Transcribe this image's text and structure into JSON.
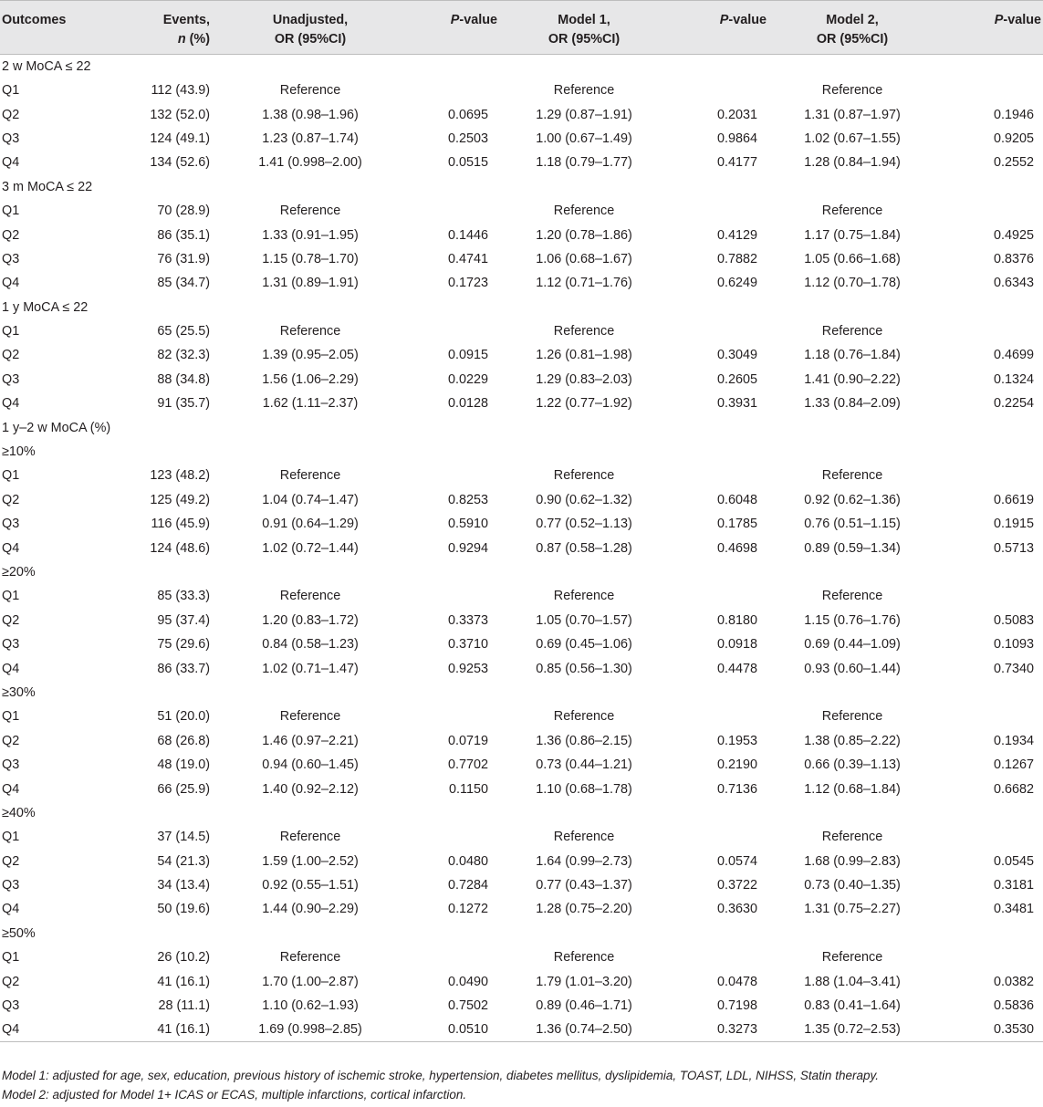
{
  "header": {
    "outcomes": "Outcomes",
    "events_line1": "Events,",
    "events_line2_italic": "n",
    "events_line2_rest": " (%)",
    "unadjusted_line1": "Unadjusted,",
    "unadjusted_line2": "OR (95%CI)",
    "pvalue_italic": "P",
    "pvalue_rest": "-value",
    "model1_line1": "Model 1,",
    "model1_line2": "OR (95%CI)",
    "model2_line1": "Model 2,",
    "model2_line2": "OR (95%CI)"
  },
  "rows": [
    {
      "type": "section",
      "label": "2 w MoCA ≤ 22"
    },
    {
      "type": "data",
      "label": "Q1",
      "events": "112 (43.9)",
      "unadj": "Reference",
      "p1": "",
      "m1": "Reference",
      "p2": "",
      "m2": "Reference",
      "p3": ""
    },
    {
      "type": "data",
      "label": "Q2",
      "events": "132 (52.0)",
      "unadj": "1.38 (0.98–1.96)",
      "p1": "0.0695",
      "m1": "1.29 (0.87–1.91)",
      "p2": "0.2031",
      "m2": "1.31 (0.87–1.97)",
      "p3": "0.1946"
    },
    {
      "type": "data",
      "label": "Q3",
      "events": "124 (49.1)",
      "unadj": "1.23 (0.87–1.74)",
      "p1": "0.2503",
      "m1": "1.00 (0.67–1.49)",
      "p2": "0.9864",
      "m2": "1.02 (0.67–1.55)",
      "p3": "0.9205"
    },
    {
      "type": "data",
      "label": "Q4",
      "events": "134 (52.6)",
      "unadj": "1.41 (0.998–2.00)",
      "p1": "0.0515",
      "m1": "1.18 (0.79–1.77)",
      "p2": "0.4177",
      "m2": "1.28 (0.84–1.94)",
      "p3": "0.2552"
    },
    {
      "type": "section",
      "label": "3 m MoCA ≤ 22"
    },
    {
      "type": "data",
      "label": "Q1",
      "events": "70 (28.9)",
      "unadj": "Reference",
      "p1": "",
      "m1": "Reference",
      "p2": "",
      "m2": "Reference",
      "p3": ""
    },
    {
      "type": "data",
      "label": "Q2",
      "events": "86 (35.1)",
      "unadj": "1.33 (0.91–1.95)",
      "p1": "0.1446",
      "m1": "1.20 (0.78–1.86)",
      "p2": "0.4129",
      "m2": "1.17 (0.75–1.84)",
      "p3": "0.4925"
    },
    {
      "type": "data",
      "label": "Q3",
      "events": "76 (31.9)",
      "unadj": "1.15 (0.78–1.70)",
      "p1": "0.4741",
      "m1": "1.06 (0.68–1.67)",
      "p2": "0.7882",
      "m2": "1.05 (0.66–1.68)",
      "p3": "0.8376"
    },
    {
      "type": "data",
      "label": "Q4",
      "events": "85 (34.7)",
      "unadj": "1.31 (0.89–1.91)",
      "p1": "0.1723",
      "m1": "1.12 (0.71–1.76)",
      "p2": "0.6249",
      "m2": "1.12 (0.70–1.78)",
      "p3": "0.6343"
    },
    {
      "type": "section",
      "label": "1 y MoCA ≤ 22"
    },
    {
      "type": "data",
      "label": "Q1",
      "events": "65 (25.5)",
      "unadj": "Reference",
      "p1": "",
      "m1": "Reference",
      "p2": "",
      "m2": "Reference",
      "p3": ""
    },
    {
      "type": "data",
      "label": "Q2",
      "events": "82 (32.3)",
      "unadj": "1.39 (0.95–2.05)",
      "p1": "0.0915",
      "m1": "1.26 (0.81–1.98)",
      "p2": "0.3049",
      "m2": "1.18 (0.76–1.84)",
      "p3": "0.4699"
    },
    {
      "type": "data",
      "label": "Q3",
      "events": "88 (34.8)",
      "unadj": "1.56 (1.06–2.29)",
      "p1": "0.0229",
      "m1": "1.29 (0.83–2.03)",
      "p2": "0.2605",
      "m2": "1.41 (0.90–2.22)",
      "p3": "0.1324"
    },
    {
      "type": "data",
      "label": "Q4",
      "events": "91 (35.7)",
      "unadj": "1.62 (1.11–2.37)",
      "p1": "0.0128",
      "m1": "1.22 (0.77–1.92)",
      "p2": "0.3931",
      "m2": "1.33 (0.84–2.09)",
      "p3": "0.2254"
    },
    {
      "type": "section",
      "label": "1 y–2 w MoCA (%)"
    },
    {
      "type": "section",
      "label": "≥10%"
    },
    {
      "type": "data",
      "label": "Q1",
      "events": "123 (48.2)",
      "unadj": "Reference",
      "p1": "",
      "m1": "Reference",
      "p2": "",
      "m2": "Reference",
      "p3": ""
    },
    {
      "type": "data",
      "label": "Q2",
      "events": "125 (49.2)",
      "unadj": "1.04 (0.74–1.47)",
      "p1": "0.8253",
      "m1": "0.90 (0.62–1.32)",
      "p2": "0.6048",
      "m2": "0.92 (0.62–1.36)",
      "p3": "0.6619"
    },
    {
      "type": "data",
      "label": "Q3",
      "events": "116 (45.9)",
      "unadj": "0.91 (0.64–1.29)",
      "p1": "0.5910",
      "m1": "0.77 (0.52–1.13)",
      "p2": "0.1785",
      "m2": "0.76 (0.51–1.15)",
      "p3": "0.1915"
    },
    {
      "type": "data",
      "label": "Q4",
      "events": "124 (48.6)",
      "unadj": "1.02 (0.72–1.44)",
      "p1": "0.9294",
      "m1": "0.87 (0.58–1.28)",
      "p2": "0.4698",
      "m2": "0.89 (0.59–1.34)",
      "p3": "0.5713"
    },
    {
      "type": "section",
      "label": "≥20%"
    },
    {
      "type": "data",
      "label": "Q1",
      "events": "85 (33.3)",
      "unadj": "Reference",
      "p1": "",
      "m1": "Reference",
      "p2": "",
      "m2": "Reference",
      "p3": ""
    },
    {
      "type": "data",
      "label": "Q2",
      "events": "95 (37.4)",
      "unadj": "1.20 (0.83–1.72)",
      "p1": "0.3373",
      "m1": "1.05 (0.70–1.57)",
      "p2": "0.8180",
      "m2": "1.15 (0.76–1.76)",
      "p3": "0.5083"
    },
    {
      "type": "data",
      "label": "Q3",
      "events": "75 (29.6)",
      "unadj": "0.84 (0.58–1.23)",
      "p1": "0.3710",
      "m1": "0.69 (0.45–1.06)",
      "p2": "0.0918",
      "m2": "0.69 (0.44–1.09)",
      "p3": "0.1093"
    },
    {
      "type": "data",
      "label": "Q4",
      "events": "86 (33.7)",
      "unadj": "1.02 (0.71–1.47)",
      "p1": "0.9253",
      "m1": "0.85 (0.56–1.30)",
      "p2": "0.4478",
      "m2": "0.93 (0.60–1.44)",
      "p3": "0.7340"
    },
    {
      "type": "section",
      "label": "≥30%"
    },
    {
      "type": "data",
      "label": "Q1",
      "events": "51 (20.0)",
      "unadj": "Reference",
      "p1": "",
      "m1": "Reference",
      "p2": "",
      "m2": "Reference",
      "p3": ""
    },
    {
      "type": "data",
      "label": "Q2",
      "events": "68 (26.8)",
      "unadj": "1.46 (0.97–2.21)",
      "p1": "0.0719",
      "m1": "1.36 (0.86–2.15)",
      "p2": "0.1953",
      "m2": "1.38 (0.85–2.22)",
      "p3": "0.1934"
    },
    {
      "type": "data",
      "label": "Q3",
      "events": "48 (19.0)",
      "unadj": "0.94 (0.60–1.45)",
      "p1": "0.7702",
      "m1": "0.73 (0.44–1.21)",
      "p2": "0.2190",
      "m2": "0.66 (0.39–1.13)",
      "p3": "0.1267"
    },
    {
      "type": "data",
      "label": "Q4",
      "events": "66 (25.9)",
      "unadj": "1.40 (0.92–2.12)",
      "p1": "0.1150",
      "m1": "1.10 (0.68–1.78)",
      "p2": "0.7136",
      "m2": "1.12 (0.68–1.84)",
      "p3": "0.6682"
    },
    {
      "type": "section",
      "label": "≥40%"
    },
    {
      "type": "data",
      "label": "Q1",
      "events": "37 (14.5)",
      "unadj": "Reference",
      "p1": "",
      "m1": "Reference",
      "p2": "",
      "m2": "Reference",
      "p3": ""
    },
    {
      "type": "data",
      "label": "Q2",
      "events": "54 (21.3)",
      "unadj": "1.59 (1.00–2.52)",
      "p1": "0.0480",
      "m1": "1.64 (0.99–2.73)",
      "p2": "0.0574",
      "m2": "1.68 (0.99–2.83)",
      "p3": "0.0545"
    },
    {
      "type": "data",
      "label": "Q3",
      "events": "34 (13.4)",
      "unadj": "0.92 (0.55–1.51)",
      "p1": "0.7284",
      "m1": "0.77 (0.43–1.37)",
      "p2": "0.3722",
      "m2": "0.73 (0.40–1.35)",
      "p3": "0.3181"
    },
    {
      "type": "data",
      "label": "Q4",
      "events": "50 (19.6)",
      "unadj": "1.44 (0.90–2.29)",
      "p1": "0.1272",
      "m1": "1.28 (0.75–2.20)",
      "p2": "0.3630",
      "m2": "1.31 (0.75–2.27)",
      "p3": "0.3481"
    },
    {
      "type": "section",
      "label": "≥50%"
    },
    {
      "type": "data",
      "label": "Q1",
      "events": "26 (10.2)",
      "unadj": "Reference",
      "p1": "",
      "m1": "Reference",
      "p2": "",
      "m2": "Reference",
      "p3": ""
    },
    {
      "type": "data",
      "label": "Q2",
      "events": "41 (16.1)",
      "unadj": "1.70 (1.00–2.87)",
      "p1": "0.0490",
      "m1": "1.79 (1.01–3.20)",
      "p2": "0.0478",
      "m2": "1.88 (1.04–3.41)",
      "p3": "0.0382"
    },
    {
      "type": "data",
      "label": "Q3",
      "events": "28 (11.1)",
      "unadj": "1.10 (0.62–1.93)",
      "p1": "0.7502",
      "m1": "0.89 (0.46–1.71)",
      "p2": "0.7198",
      "m2": "0.83 (0.41–1.64)",
      "p3": "0.5836"
    },
    {
      "type": "data",
      "label": "Q4",
      "events": "41 (16.1)",
      "unadj": "1.69 (0.998–2.85)",
      "p1": "0.0510",
      "m1": "1.36 (0.74–2.50)",
      "p2": "0.3273",
      "m2": "1.35 (0.72–2.53)",
      "p3": "0.3530"
    }
  ],
  "footnotes": [
    "Model 1: adjusted for age, sex, education, previous history of ischemic stroke, hypertension, diabetes mellitus, dyslipidemia, TOAST, LDL, NIHSS, Statin therapy.",
    "Model 2: adjusted for Model 1+ ICAS or ECAS, multiple infarctions, cortical infarction."
  ]
}
